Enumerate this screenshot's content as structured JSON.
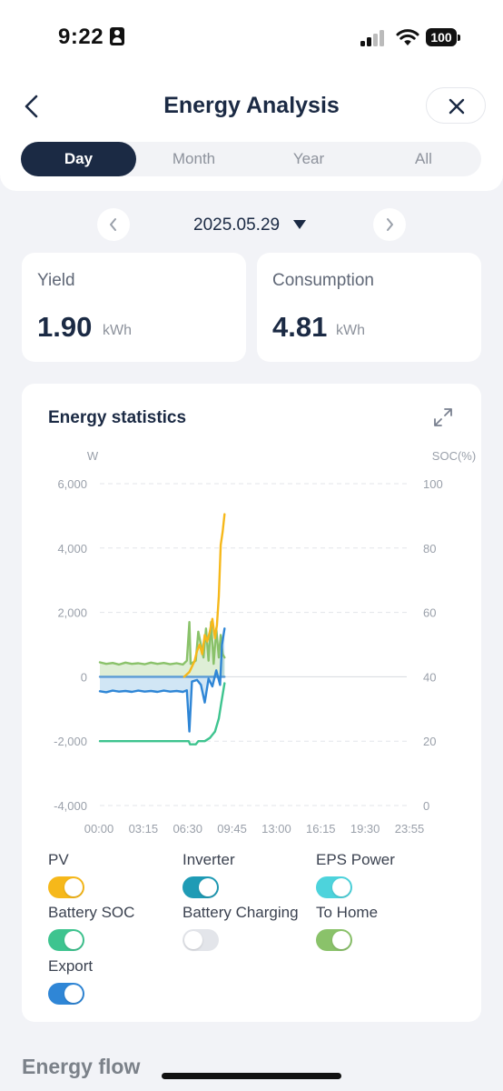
{
  "status_bar": {
    "time": "9:22",
    "battery": "100"
  },
  "header": {
    "title": "Energy Analysis"
  },
  "tabs": [
    {
      "label": "Day",
      "active": true
    },
    {
      "label": "Month",
      "active": false
    },
    {
      "label": "Year",
      "active": false
    },
    {
      "label": "All",
      "active": false
    }
  ],
  "date": {
    "value": "2025.05.29"
  },
  "stats": {
    "yield": {
      "label": "Yield",
      "value": "1.90",
      "unit": "kWh"
    },
    "consumption": {
      "label": "Consumption",
      "value": "4.81",
      "unit": "kWh"
    }
  },
  "chart_card": {
    "title": "Energy statistics"
  },
  "chart_data": {
    "type": "line",
    "left_unit": "W",
    "right_unit": "SOC(%)",
    "ylim_left": [
      -4000,
      6000
    ],
    "ylim_right": [
      0,
      100
    ],
    "yticks_left": [
      "6,000",
      "4,000",
      "2,000",
      "0",
      "-2,000",
      "-4,000"
    ],
    "yticks_right": [
      "100",
      "80",
      "60",
      "40",
      "20",
      "0"
    ],
    "xticks": [
      "00:00",
      "03:15",
      "06:30",
      "09:45",
      "13:00",
      "16:15",
      "19:30",
      "23:55"
    ],
    "x_range_hours": [
      0,
      24
    ],
    "grid": true,
    "series": [
      {
        "name": "PV",
        "color": "#f6b81a",
        "axis": "left",
        "points": [
          [
            6.6,
            0
          ],
          [
            7.0,
            150
          ],
          [
            7.4,
            480
          ],
          [
            7.6,
            800
          ],
          [
            7.8,
            1000
          ],
          [
            8.0,
            700
          ],
          [
            8.2,
            1300
          ],
          [
            8.4,
            1100
          ],
          [
            8.6,
            1400
          ],
          [
            8.8,
            1800
          ],
          [
            9.0,
            1200
          ],
          [
            9.15,
            1600
          ],
          [
            9.3,
            2500
          ],
          [
            9.45,
            4100
          ],
          [
            9.6,
            4500
          ],
          [
            9.75,
            5050
          ]
        ]
      },
      {
        "name": "To Home",
        "color": "#8ac26a",
        "axis": "left",
        "points": [
          [
            0,
            450
          ],
          [
            0.5,
            400
          ],
          [
            1,
            430
          ],
          [
            1.5,
            380
          ],
          [
            2,
            440
          ],
          [
            2.5,
            400
          ],
          [
            3,
            420
          ],
          [
            3.5,
            390
          ],
          [
            4,
            440
          ],
          [
            4.5,
            400
          ],
          [
            5,
            430
          ],
          [
            5.5,
            390
          ],
          [
            6,
            420
          ],
          [
            6.5,
            380
          ],
          [
            6.8,
            500
          ],
          [
            7.0,
            1700
          ],
          [
            7.1,
            400
          ],
          [
            7.3,
            450
          ],
          [
            7.5,
            500
          ],
          [
            7.7,
            1400
          ],
          [
            7.9,
            1000
          ],
          [
            8.1,
            600
          ],
          [
            8.3,
            1500
          ],
          [
            8.5,
            500
          ],
          [
            8.7,
            1700
          ],
          [
            8.9,
            400
          ],
          [
            9.1,
            1500
          ],
          [
            9.3,
            600
          ],
          [
            9.45,
            1300
          ],
          [
            9.6,
            700
          ],
          [
            9.75,
            600
          ]
        ]
      },
      {
        "name": "Battery Charging",
        "color": "#5a9bd5",
        "axis": "left",
        "fill": true,
        "points": [
          [
            0,
            0
          ],
          [
            9.75,
            0
          ]
        ]
      },
      {
        "name": "Export",
        "color": "#2f86d6",
        "axis": "left",
        "points": [
          [
            0,
            -450
          ],
          [
            0.5,
            -480
          ],
          [
            1,
            -430
          ],
          [
            1.5,
            -460
          ],
          [
            2,
            -440
          ],
          [
            2.5,
            -470
          ],
          [
            3,
            -430
          ],
          [
            3.5,
            -460
          ],
          [
            4,
            -440
          ],
          [
            4.5,
            -470
          ],
          [
            5,
            -430
          ],
          [
            5.5,
            -460
          ],
          [
            6,
            -440
          ],
          [
            6.5,
            -470
          ],
          [
            6.8,
            -420
          ],
          [
            7.0,
            -1700
          ],
          [
            7.2,
            -150
          ],
          [
            7.6,
            -100
          ],
          [
            7.9,
            -250
          ],
          [
            8.2,
            -800
          ],
          [
            8.5,
            -60
          ],
          [
            8.8,
            -300
          ],
          [
            9.1,
            200
          ],
          [
            9.4,
            -250
          ],
          [
            9.55,
            1000
          ],
          [
            9.75,
            1500
          ]
        ]
      },
      {
        "name": "Battery SOC",
        "color": "#3ec48f",
        "axis": "right",
        "points": [
          [
            0,
            20
          ],
          [
            6.95,
            20
          ],
          [
            7.05,
            19
          ],
          [
            7.5,
            19
          ],
          [
            7.7,
            20
          ],
          [
            8.2,
            20
          ],
          [
            8.6,
            21
          ],
          [
            9.0,
            23
          ],
          [
            9.3,
            27
          ],
          [
            9.5,
            32
          ],
          [
            9.75,
            38
          ]
        ]
      }
    ]
  },
  "legend": [
    {
      "label": "PV",
      "on": true,
      "color": "#f6b81a"
    },
    {
      "label": "Inverter",
      "on": true,
      "color": "#1f9bb5"
    },
    {
      "label": "EPS Power",
      "on": true,
      "color": "#4dd3dc"
    },
    {
      "label": "Battery SOC",
      "on": true,
      "color": "#3ec48f"
    },
    {
      "label": "Battery Charging",
      "on": false,
      "color": "#e3e5ea"
    },
    {
      "label": "To Home",
      "on": true,
      "color": "#8ac26a"
    },
    {
      "label": "Export",
      "on": true,
      "color": "#2f86d6"
    }
  ],
  "energy_flow": {
    "title": "Energy flow"
  },
  "icons": {
    "back": "chevron-left-icon",
    "close": "close-icon",
    "prev_date": "chevron-left-icon",
    "next_date": "chevron-right-icon",
    "date_dropdown": "caret-down-icon",
    "expand": "expand-icon"
  }
}
